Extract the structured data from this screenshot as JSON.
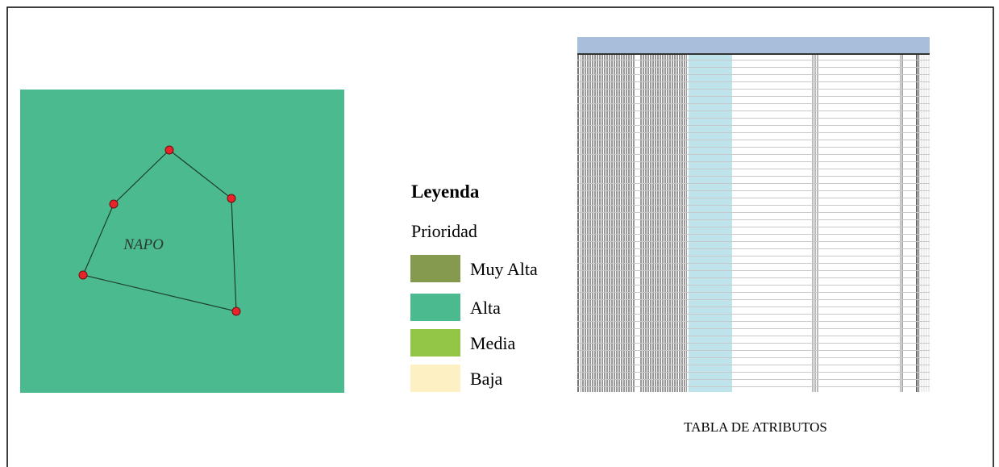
{
  "map": {
    "label": "NAPO",
    "fill": "#4cba8f"
  },
  "legend": {
    "title": "Leyenda",
    "subtitle": "Prioridad",
    "items": [
      {
        "label": "Muy Alta",
        "color": "#85994f"
      },
      {
        "label": "Alta",
        "color": "#4cba8f"
      },
      {
        "label": "Media",
        "color": "#93c647"
      },
      {
        "label": "Baja",
        "color": "#fdf0c2"
      }
    ]
  },
  "table": {
    "caption": "TABLA DE ATRIBUTOS"
  }
}
